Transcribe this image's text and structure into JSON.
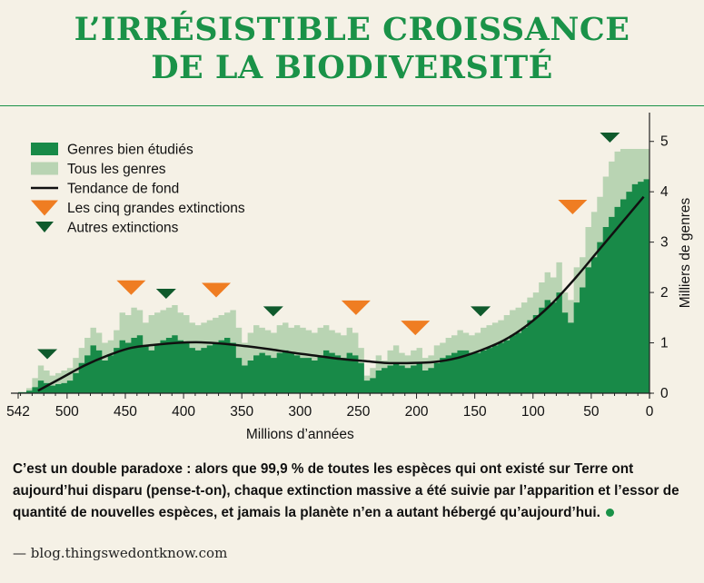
{
  "title": {
    "line1": "L’IRRÉSISTIBLE CROISSANCE",
    "line2": "DE LA BIODIVERSITÉ"
  },
  "caption": "C’est un double paradoxe : alors que 99,9 % de toutes les espèces qui ont existé sur Terre ont aujourd’hui disparu (pense-t-on), chaque extinction massive a été suivie par l’apparition et l’essor de quantité de nouvelles espèces,  et jamais la planète n’en a autant hébergé qu’aujourd’hui.",
  "source": "— blog.thingswedontknow.com",
  "colors": {
    "dark_green": "#188a48",
    "light_green": "#b9d4b3",
    "orange": "#ef7d22",
    "marker_green": "#0f5a2c",
    "title_green": "#1a9248"
  },
  "chart_data": {
    "type": "area",
    "xlabel": "Millions d’années",
    "ylabel": "Milliers de genres",
    "xlim": [
      542,
      0
    ],
    "ylim": [
      0,
      5.5
    ],
    "xticks": [
      542,
      500,
      450,
      400,
      350,
      300,
      250,
      200,
      150,
      100,
      50,
      0
    ],
    "yticks": [
      0,
      1,
      2,
      3,
      4,
      5
    ],
    "legend": [
      {
        "label": "Genres bien étudiés",
        "kind": "dark-area"
      },
      {
        "label": "Tous les genres",
        "kind": "light-area"
      },
      {
        "label": "Tendance de fond",
        "kind": "line"
      },
      {
        "label": "Les cinq grandes extinctions",
        "kind": "orange-triangle"
      },
      {
        "label": "Autres extinctions",
        "kind": "green-triangle"
      }
    ],
    "x": [
      542,
      535,
      530,
      525,
      520,
      515,
      510,
      505,
      500,
      495,
      490,
      485,
      480,
      475,
      470,
      465,
      460,
      455,
      450,
      445,
      440,
      435,
      430,
      425,
      420,
      415,
      410,
      405,
      400,
      395,
      390,
      385,
      380,
      375,
      370,
      365,
      360,
      355,
      350,
      345,
      340,
      335,
      330,
      325,
      320,
      315,
      310,
      305,
      300,
      295,
      290,
      285,
      280,
      275,
      270,
      265,
      260,
      255,
      250,
      245,
      240,
      235,
      230,
      225,
      220,
      215,
      210,
      205,
      200,
      195,
      190,
      185,
      180,
      175,
      170,
      165,
      160,
      155,
      150,
      145,
      140,
      135,
      130,
      125,
      120,
      115,
      110,
      105,
      100,
      95,
      90,
      85,
      80,
      75,
      70,
      65,
      60,
      55,
      50,
      45,
      40,
      35,
      30,
      25,
      20,
      15,
      10,
      5,
      0
    ],
    "series": [
      {
        "name": "Tous les genres",
        "values": [
          0.02,
          0.1,
          0.3,
          0.55,
          0.45,
          0.35,
          0.4,
          0.45,
          0.5,
          0.7,
          0.9,
          1.1,
          1.3,
          1.2,
          1.0,
          1.05,
          1.25,
          1.6,
          1.55,
          1.7,
          1.65,
          1.4,
          1.55,
          1.6,
          1.65,
          1.7,
          1.75,
          1.6,
          1.55,
          1.4,
          1.35,
          1.4,
          1.45,
          1.5,
          1.55,
          1.6,
          1.65,
          1.3,
          1.0,
          1.2,
          1.35,
          1.3,
          1.25,
          1.2,
          1.35,
          1.4,
          1.3,
          1.35,
          1.3,
          1.25,
          1.2,
          1.3,
          1.35,
          1.25,
          1.2,
          1.15,
          1.3,
          1.2,
          0.9,
          0.35,
          0.5,
          0.75,
          0.65,
          0.85,
          0.95,
          0.8,
          0.75,
          0.85,
          0.9,
          0.7,
          0.75,
          0.95,
          1.0,
          1.1,
          1.15,
          1.25,
          1.2,
          1.15,
          1.2,
          1.3,
          1.35,
          1.4,
          1.45,
          1.55,
          1.65,
          1.7,
          1.8,
          1.9,
          2.0,
          2.2,
          2.4,
          2.3,
          2.6,
          2.0,
          1.85,
          2.5,
          2.7,
          3.3,
          3.6,
          3.9,
          4.3,
          4.6,
          4.8,
          4.85,
          4.85,
          4.85,
          4.85,
          4.85,
          4.85
        ]
      },
      {
        "name": "Genres bien étudiés",
        "values": [
          0.02,
          0.05,
          0.12,
          0.25,
          0.2,
          0.15,
          0.18,
          0.2,
          0.25,
          0.4,
          0.6,
          0.75,
          0.95,
          0.85,
          0.65,
          0.75,
          0.9,
          1.05,
          1.0,
          1.1,
          1.15,
          0.95,
          0.85,
          0.95,
          1.05,
          1.1,
          1.15,
          1.05,
          1.0,
          0.9,
          0.85,
          0.9,
          0.95,
          1.0,
          1.05,
          1.1,
          1.0,
          0.7,
          0.55,
          0.65,
          0.75,
          0.8,
          0.75,
          0.7,
          0.8,
          0.85,
          0.8,
          0.75,
          0.7,
          0.7,
          0.65,
          0.75,
          0.85,
          0.8,
          0.75,
          0.7,
          0.8,
          0.75,
          0.6,
          0.25,
          0.3,
          0.45,
          0.5,
          0.55,
          0.6,
          0.55,
          0.5,
          0.55,
          0.6,
          0.45,
          0.5,
          0.6,
          0.7,
          0.75,
          0.8,
          0.85,
          0.85,
          0.8,
          0.8,
          0.85,
          0.9,
          0.95,
          1.0,
          1.05,
          1.15,
          1.2,
          1.3,
          1.45,
          1.55,
          1.7,
          1.85,
          1.8,
          2.0,
          1.6,
          1.4,
          1.8,
          2.1,
          2.5,
          2.7,
          3.0,
          3.3,
          3.5,
          3.7,
          3.85,
          4.0,
          4.15,
          4.2,
          4.25,
          4.15
        ]
      },
      {
        "name": "Tendance de fond",
        "x": [
          525,
          505,
          485,
          465,
          445,
          425,
          405,
          385,
          365,
          345,
          325,
          305,
          285,
          265,
          245,
          225,
          205,
          185,
          165,
          145,
          125,
          105,
          85,
          65,
          45,
          25,
          5
        ],
        "values": [
          0.05,
          0.3,
          0.55,
          0.75,
          0.9,
          0.96,
          1.0,
          1.01,
          0.98,
          0.93,
          0.87,
          0.8,
          0.74,
          0.68,
          0.64,
          0.6,
          0.6,
          0.62,
          0.7,
          0.85,
          1.05,
          1.35,
          1.75,
          2.25,
          2.8,
          3.35,
          3.9
        ]
      }
    ],
    "major_extinctions": [
      445,
      372,
      252,
      201,
      66
    ],
    "minor_extinctions": [
      517,
      415,
      323,
      145,
      34
    ]
  }
}
